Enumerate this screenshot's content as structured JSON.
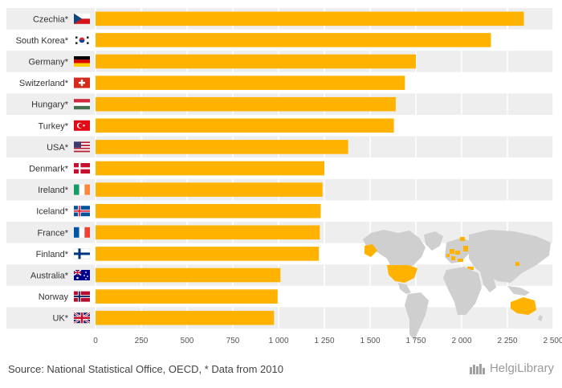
{
  "chart_data": {
    "type": "bar",
    "orientation": "horizontal",
    "categories": [
      "Czechia*",
      "South Korea*",
      "Germany*",
      "Switzerland*",
      "Hungary*",
      "Turkey*",
      "USA*",
      "Denmark*",
      "Ireland*",
      "Iceland*",
      "France*",
      "Finland*",
      "Australia*",
      "Norway",
      "UK*"
    ],
    "flags": [
      "czechia",
      "south-korea",
      "germany",
      "switzerland",
      "hungary",
      "turkey",
      "usa",
      "denmark",
      "ireland",
      "iceland",
      "france",
      "finland",
      "australia",
      "norway",
      "uk"
    ],
    "values": [
      2340,
      2160,
      1750,
      1690,
      1640,
      1630,
      1380,
      1250,
      1240,
      1230,
      1225,
      1220,
      1010,
      995,
      975
    ],
    "xlim": [
      0,
      2500
    ],
    "x_ticks": [
      0,
      250,
      500,
      750,
      1000,
      1250,
      1500,
      1750,
      2000,
      2250,
      2500
    ],
    "x_tick_labels": [
      "0",
      "250",
      "500",
      "750",
      "1 000",
      "1 250",
      "1 500",
      "1 750",
      "2 000",
      "2 250",
      "2 500"
    ],
    "bar_color": "#ffb300",
    "grid": true,
    "title": "",
    "xlabel": "",
    "ylabel": ""
  },
  "footer": {
    "source": "Source: National Statistical Office, OECD, * Data from 2010",
    "brand": "HelgiLibrary"
  },
  "colors": {
    "row_shade": "#eeeeee",
    "map_land": "#cfcfcf",
    "map_highlight": "#ffb300"
  }
}
